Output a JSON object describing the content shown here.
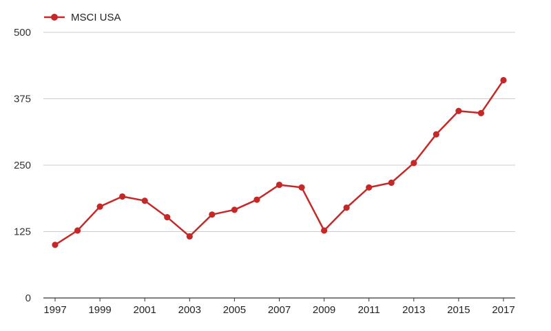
{
  "chart_data": {
    "type": "line",
    "title": "",
    "xlabel": "",
    "ylabel": "",
    "x": [
      1997,
      1998,
      1999,
      2000,
      2001,
      2002,
      2003,
      2004,
      2005,
      2006,
      2007,
      2008,
      2009,
      2010,
      2011,
      2012,
      2013,
      2014,
      2015,
      2016,
      2017
    ],
    "x_tick_labels": [
      "1997",
      "1999",
      "2001",
      "2003",
      "2005",
      "2007",
      "2009",
      "2011",
      "2013",
      "2015",
      "2017"
    ],
    "y_tick_labels": [
      "0",
      "125",
      "250",
      "375",
      "500"
    ],
    "ylim": [
      0,
      500
    ],
    "grid": true,
    "legend_position": "top-left",
    "series": [
      {
        "name": "MSCI USA",
        "color": "#c62828",
        "values": [
          100,
          127,
          172,
          191,
          183,
          152,
          116,
          157,
          166,
          185,
          213,
          208,
          127,
          170,
          208,
          217,
          254,
          308,
          352,
          348,
          410
        ]
      }
    ]
  }
}
